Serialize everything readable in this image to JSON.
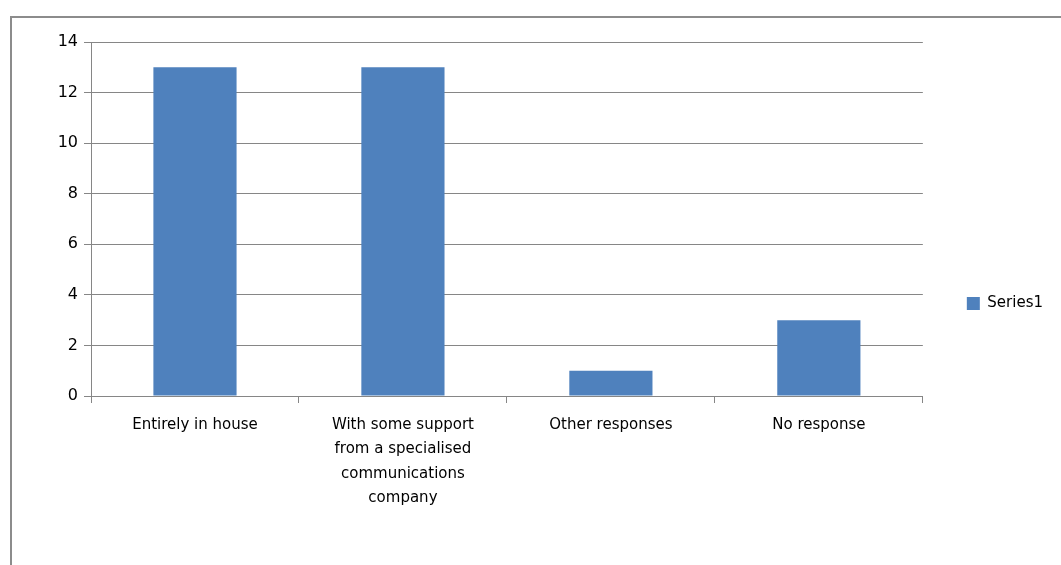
{
  "chart_data": {
    "type": "bar",
    "categories": [
      "Entirely in house",
      "With some support from a specialised communications company",
      "Other responses",
      "No response"
    ],
    "series": [
      {
        "name": "Series1",
        "color": "#4f81bd",
        "values": [
          13,
          13,
          1,
          3
        ]
      }
    ],
    "ylim": [
      0,
      14
    ],
    "yticks": [
      0,
      2,
      4,
      6,
      8,
      10,
      12,
      14
    ],
    "grid": "y",
    "legend": "right"
  }
}
